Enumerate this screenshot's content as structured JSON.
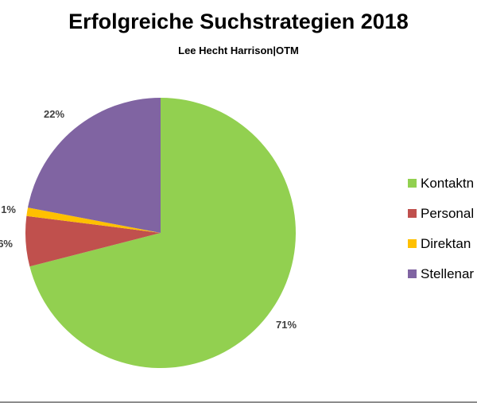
{
  "chart_data": {
    "type": "pie",
    "title": "Erfolgreiche Suchstrategien 2018",
    "subtitle": "Lee Hecht Harrison|OTM",
    "slices": [
      {
        "label": "Kontaktn",
        "value": 71,
        "display": "71%",
        "color": "#92D050"
      },
      {
        "label": "Personal",
        "value": 6,
        "display": "6%",
        "color": "#C0504D"
      },
      {
        "label": "Direktan",
        "value": 1,
        "display": "1%",
        "color": "#FFC000"
      },
      {
        "label": "Stellenar",
        "value": 22,
        "display": "22%",
        "color": "#8064A2"
      }
    ],
    "legend_position": "right"
  }
}
